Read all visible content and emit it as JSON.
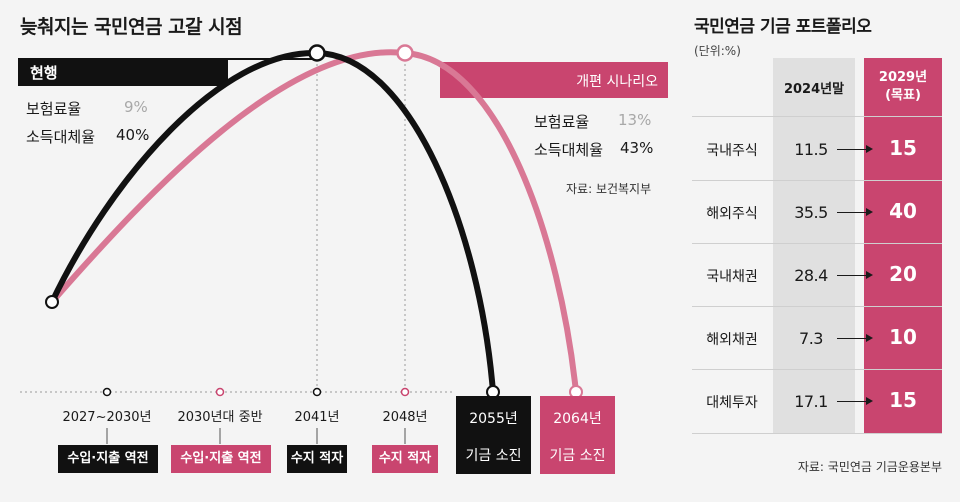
{
  "colors": {
    "current": "#111111",
    "reform": "#c9456f",
    "reform_light": "#d97895",
    "grey_col": "#e0e0e0",
    "background": "#f4f4f4"
  },
  "left": {
    "title": "늦춰지는 국민연금 고갈 시점",
    "current_banner": "현행",
    "reform_banner": "개편 시나리오",
    "current_params": [
      {
        "label": "보험료율",
        "value": "9%"
      },
      {
        "label": "소득대체율",
        "value": "40%"
      }
    ],
    "reform_params": [
      {
        "label": "보험료율",
        "value": "13%"
      },
      {
        "label": "소득대체율",
        "value": "43%"
      }
    ],
    "source": "자료: 보건복지부",
    "timeline": [
      {
        "year": "2027~2030년",
        "event": "수입·지출 역전",
        "series": "current"
      },
      {
        "year": "2030년대 중반",
        "event": "수입·지출 역전",
        "series": "reform"
      },
      {
        "year": "2041년",
        "event": "수지 적자",
        "series": "current"
      },
      {
        "year": "2048년",
        "event": "수지 적자",
        "series": "reform"
      }
    ],
    "depletion": [
      {
        "year": "2055년",
        "event": "기금 소진",
        "series": "current"
      },
      {
        "year": "2064년",
        "event": "기금 소진",
        "series": "reform"
      }
    ]
  },
  "right": {
    "title": "국민연금 기금 포트폴리오",
    "unit": "(단위:%)",
    "col_2024": "2024년말",
    "col_2029_line1": "2029년",
    "col_2029_line2": "(목표)",
    "rows": [
      {
        "asset": "국내주식",
        "v2024": "11.5",
        "v2029": "15"
      },
      {
        "asset": "해외주식",
        "v2024": "35.5",
        "v2029": "40"
      },
      {
        "asset": "국내채권",
        "v2024": "28.4",
        "v2029": "20"
      },
      {
        "asset": "해외채권",
        "v2024": "7.3",
        "v2029": "10"
      },
      {
        "asset": "대체투자",
        "v2024": "17.1",
        "v2029": "15"
      }
    ],
    "source": "자료: 국민연금 기금운용본부"
  },
  "chart_data": [
    {
      "type": "line",
      "title": "늦춰지는 국민연금 고갈 시점",
      "series": [
        {
          "name": "현행",
          "peak_year": "2041년",
          "depletion_year": "2055년"
        },
        {
          "name": "개편 시나리오",
          "peak_year": "2048년",
          "depletion_year": "2064년"
        }
      ]
    },
    {
      "type": "table",
      "title": "국민연금 기금 포트폴리오",
      "columns": [
        "2024년말",
        "2029년 (목표)"
      ],
      "categories": [
        "국내주식",
        "해외주식",
        "국내채권",
        "해외채권",
        "대체투자"
      ],
      "series": [
        {
          "name": "2024년말",
          "values": [
            11.5,
            35.5,
            28.4,
            7.3,
            17.1
          ]
        },
        {
          "name": "2029년 (목표)",
          "values": [
            15,
            40,
            20,
            10,
            15
          ]
        }
      ]
    }
  ]
}
